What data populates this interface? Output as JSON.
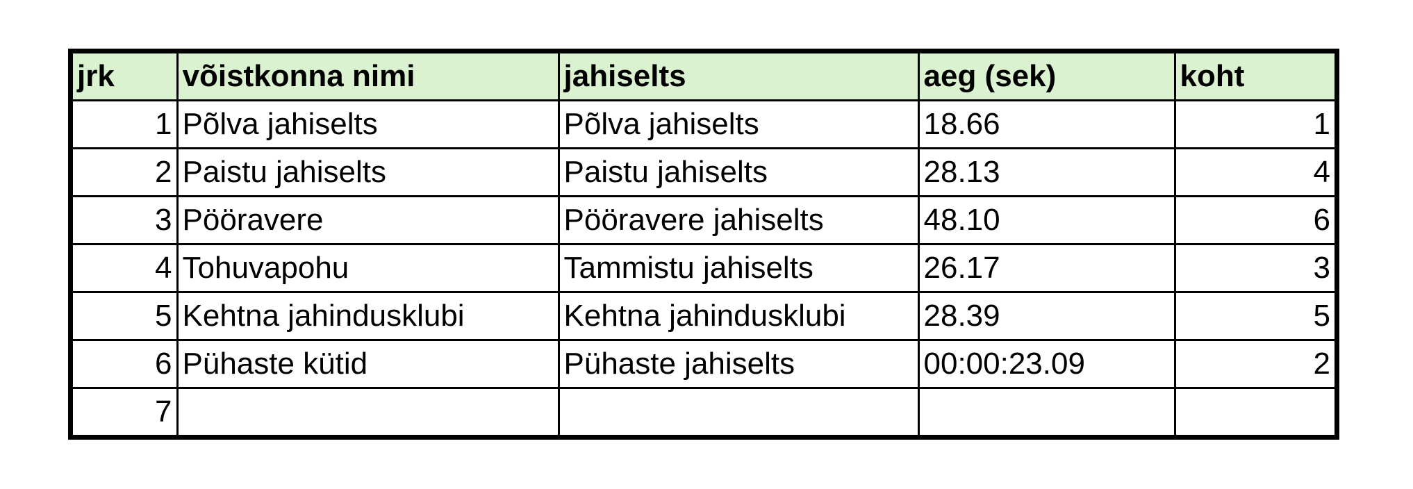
{
  "table": {
    "header_bg": "#daf2d0",
    "headers": {
      "jrk": "jrk",
      "voistkond": "võistkonna nimi",
      "jahiselts": "jahiselts",
      "aeg": "aeg (sek)",
      "koht": "koht"
    },
    "rows": [
      {
        "jrk": "1",
        "voistkond": "Põlva jahiselts",
        "jahiselts": "Põlva jahiselts",
        "aeg": "18.66",
        "koht": "1"
      },
      {
        "jrk": "2",
        "voistkond": "Paistu jahiselts",
        "jahiselts": "Paistu jahiselts",
        "aeg": "28.13",
        "koht": "4"
      },
      {
        "jrk": "3",
        "voistkond": "Pööravere",
        "jahiselts": "Pööravere jahiselts",
        "aeg": "48.10",
        "koht": "6"
      },
      {
        "jrk": "4",
        "voistkond": "Tohuvapohu",
        "jahiselts": "Tammistu jahiselts",
        "aeg": "26.17",
        "koht": "3"
      },
      {
        "jrk": "5",
        "voistkond": "Kehtna jahindusklubi",
        "jahiselts": "Kehtna jahindusklubi",
        "aeg": "28.39",
        "koht": "5"
      },
      {
        "jrk": "6",
        "voistkond": "Pühaste kütid",
        "jahiselts": "Pühaste jahiselts",
        "aeg": "00:00:23.09",
        "koht": "2"
      },
      {
        "jrk": "7",
        "voistkond": "",
        "jahiselts": "",
        "aeg": "",
        "koht": ""
      }
    ]
  }
}
